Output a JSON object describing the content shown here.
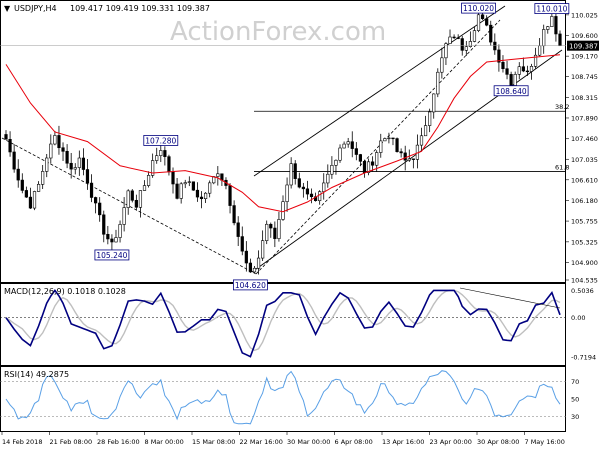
{
  "header": {
    "symbol_label": "USDJPY,H4",
    "ohlc_label": "109.417 109.419 109.331 109.387"
  },
  "watermark": "ActionForex.com",
  "chart_data": [
    {
      "type": "candlestick",
      "panel": "price",
      "ylim": [
        104.535,
        110.25
      ],
      "y_ticks": [
        "110.025",
        "109.600",
        "109.170",
        "108.745",
        "108.315",
        "107.890",
        "107.460",
        "107.035",
        "106.610",
        "106.180",
        "105.755",
        "105.325",
        "104.900",
        "104.535"
      ],
      "current_price": "109.387",
      "price_path": [
        [
          0,
          107.45
        ],
        [
          2,
          106.9
        ],
        [
          4,
          106.4
        ],
        [
          6,
          106.1
        ],
        [
          8,
          106.5
        ],
        [
          10,
          107.1
        ],
        [
          12,
          107.5
        ],
        [
          14,
          107.2
        ],
        [
          16,
          106.8
        ],
        [
          18,
          107.05
        ],
        [
          20,
          106.6
        ],
        [
          22,
          106.05
        ],
        [
          24,
          105.55
        ],
        [
          26,
          105.24
        ],
        [
          28,
          105.7
        ],
        [
          30,
          106.35
        ],
        [
          32,
          106.1
        ],
        [
          34,
          106.5
        ],
        [
          36,
          107.0
        ],
        [
          38,
          107.28
        ],
        [
          40,
          106.8
        ],
        [
          42,
          106.3
        ],
        [
          44,
          106.6
        ],
        [
          46,
          106.4
        ],
        [
          48,
          106.2
        ],
        [
          50,
          106.5
        ],
        [
          52,
          106.8
        ],
        [
          54,
          106.5
        ],
        [
          56,
          105.8
        ],
        [
          58,
          105.1
        ],
        [
          60,
          104.62
        ],
        [
          62,
          105.0
        ],
        [
          64,
          105.7
        ],
        [
          66,
          105.4
        ],
        [
          68,
          106.2
        ],
        [
          70,
          106.9
        ],
        [
          72,
          106.5
        ],
        [
          74,
          106.25
        ],
        [
          76,
          106.1
        ],
        [
          78,
          106.5
        ],
        [
          80,
          106.9
        ],
        [
          82,
          107.3
        ],
        [
          84,
          107.45
        ],
        [
          86,
          107.1
        ],
        [
          88,
          106.8
        ],
        [
          90,
          107.0
        ],
        [
          92,
          107.4
        ],
        [
          94,
          107.55
        ],
        [
          96,
          107.2
        ],
        [
          98,
          107.0
        ],
        [
          100,
          107.1
        ],
        [
          102,
          107.45
        ],
        [
          104,
          108.1
        ],
        [
          106,
          108.8
        ],
        [
          108,
          109.4
        ],
        [
          110,
          109.6
        ],
        [
          112,
          109.35
        ],
        [
          114,
          109.55
        ],
        [
          116,
          110.02
        ],
        [
          118,
          109.75
        ],
        [
          120,
          109.3
        ],
        [
          122,
          108.95
        ],
        [
          124,
          108.64
        ],
        [
          126,
          109.0
        ],
        [
          128,
          108.8
        ],
        [
          130,
          109.25
        ],
        [
          132,
          109.7
        ],
        [
          134,
          110.01
        ],
        [
          136,
          109.39
        ]
      ],
      "moving_average": [
        [
          0,
          109.0
        ],
        [
          6,
          108.2
        ],
        [
          12,
          107.6
        ],
        [
          20,
          107.4
        ],
        [
          28,
          106.9
        ],
        [
          36,
          106.75
        ],
        [
          44,
          106.8
        ],
        [
          52,
          106.65
        ],
        [
          58,
          106.35
        ],
        [
          62,
          106.05
        ],
        [
          68,
          105.95
        ],
        [
          74,
          106.15
        ],
        [
          80,
          106.45
        ],
        [
          88,
          106.75
        ],
        [
          96,
          107.0
        ],
        [
          102,
          107.2
        ],
        [
          106,
          107.7
        ],
        [
          110,
          108.3
        ],
        [
          114,
          108.75
        ],
        [
          118,
          109.05
        ],
        [
          124,
          109.1
        ],
        [
          130,
          109.15
        ],
        [
          136,
          109.2
        ]
      ],
      "annotations": [
        {
          "label": "110.020",
          "bar": 116,
          "value": 110.02,
          "side": "above"
        },
        {
          "label": "110.010",
          "bar": 134,
          "value": 110.01,
          "side": "above"
        },
        {
          "label": "108.640",
          "bar": 124,
          "value": 108.64,
          "side": "below"
        },
        {
          "label": "107.280",
          "bar": 38,
          "value": 107.28,
          "side": "above"
        },
        {
          "label": "105.240",
          "bar": 26,
          "value": 105.24,
          "side": "below"
        },
        {
          "label": "104.620",
          "bar": 60,
          "value": 104.62,
          "side": "below"
        }
      ],
      "fib_levels": [
        {
          "label": "38.2",
          "value": 108.03
        },
        {
          "label": "61.8",
          "value": 106.78
        }
      ]
    },
    {
      "type": "line",
      "panel": "macd",
      "label": "MACD(12,26,9) 0.1018 0.1028",
      "ylim": [
        -0.85,
        0.6
      ],
      "y_ticks": [
        "0.5036",
        "0.00",
        "-0.7194"
      ],
      "zero_line": 0.0
    },
    {
      "type": "line",
      "panel": "rsi",
      "label": "RSI(14) 49.2875",
      "ylim": [
        15,
        85
      ],
      "y_ticks": [
        "70",
        "50",
        "30"
      ],
      "levels": [
        70,
        30
      ]
    }
  ],
  "x_ticks": [
    "14 Feb 2018",
    "21 Feb 08:00",
    "28 Feb 16:00",
    "8 Mar 00:00",
    "15 Mar 08:00",
    "22 Mar 16:00",
    "30 Mar 00:00",
    "6 Apr 08:00",
    "13 Apr 16:00",
    "23 Apr 00:00",
    "30 Apr 08:00",
    "7 May 16:00"
  ],
  "colors": {
    "candle": "#000000",
    "moving_average": "#e8000b",
    "macd": "#000080",
    "signal": "#bfbfbf",
    "rsi": "#5aa0e6",
    "channel": "#000000",
    "fib": "#000000",
    "label_border": "#000080",
    "price_tag_bg": "#000000",
    "price_tag_fg": "#ffffff"
  }
}
